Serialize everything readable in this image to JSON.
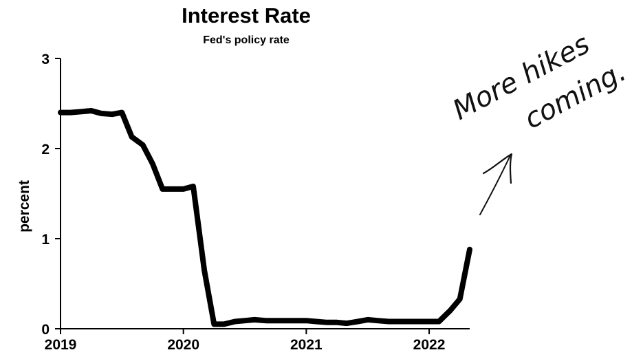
{
  "chart_data": {
    "type": "line",
    "title": "Interest Rate",
    "subtitle": "Fed's policy rate",
    "ylabel": "percent",
    "xlabel": "",
    "ylim": [
      0,
      3
    ],
    "xlim": [
      2019.0,
      2022.33
    ],
    "yticks": [
      "0",
      "1",
      "2",
      "3"
    ],
    "xticks": [
      "2019",
      "2020",
      "2021",
      "2022"
    ],
    "grid": false,
    "series": [
      {
        "x": [
          2019.0,
          2019.08,
          2019.17,
          2019.25,
          2019.33,
          2019.42,
          2019.5,
          2019.58,
          2019.67,
          2019.75,
          2019.83,
          2019.92,
          2020.0,
          2020.08,
          2020.17,
          2020.25,
          2020.33,
          2020.42,
          2020.5,
          2020.58,
          2020.67,
          2020.75,
          2020.83,
          2020.92,
          2021.0,
          2021.08,
          2021.17,
          2021.25,
          2021.33,
          2021.42,
          2021.5,
          2021.58,
          2021.67,
          2021.75,
          2021.83,
          2021.92,
          2022.0,
          2022.08,
          2022.17,
          2022.25,
          2022.33
        ],
        "values": [
          2.4,
          2.4,
          2.41,
          2.42,
          2.39,
          2.38,
          2.4,
          2.13,
          2.04,
          1.83,
          1.55,
          1.55,
          1.55,
          1.58,
          0.65,
          0.05,
          0.05,
          0.08,
          0.09,
          0.1,
          0.09,
          0.09,
          0.09,
          0.09,
          0.09,
          0.08,
          0.07,
          0.07,
          0.06,
          0.08,
          0.1,
          0.09,
          0.08,
          0.08,
          0.08,
          0.08,
          0.08,
          0.08,
          0.2,
          0.33,
          0.88
        ]
      }
    ],
    "annotation": {
      "line1": "More hikes",
      "line2": "coming."
    }
  },
  "colors": {
    "line": "#000000",
    "axis": "#000000",
    "background": "#ffffff"
  }
}
